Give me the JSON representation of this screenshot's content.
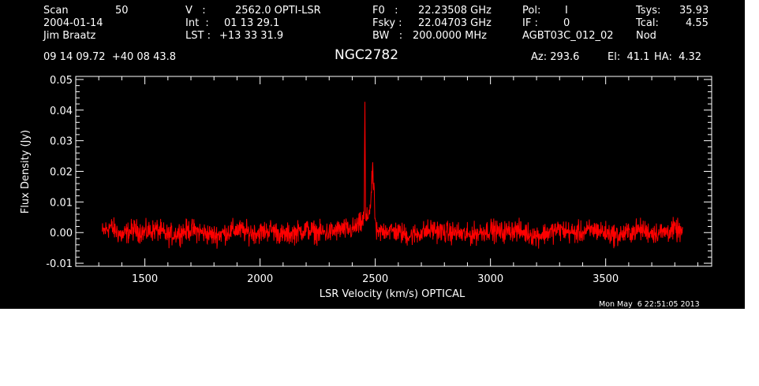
{
  "header": {
    "scan_label": "Scan",
    "scan_value": "50",
    "date": "2004-01-14",
    "observer": "Jim Braatz",
    "coords": "09 14 09.72  +40 08 43.8",
    "v_label": "V   :",
    "v_value": "2562.0 OPTI-LSR",
    "int_label": "Int  :",
    "int_value": "01 13 29.1",
    "lst_label": "LST :",
    "lst_value": "+13 33 31.9",
    "f0_label": "F0   :",
    "f0_value": "22.23508 GHz",
    "fsky_label": "Fsky :",
    "fsky_value": "22.04703 GHz",
    "bw_label": "BW   :",
    "bw_value": "200.0000 MHz",
    "pol_label": "Pol:",
    "pol_value": "I",
    "if_label": "IF :",
    "if_value": "0",
    "project": "AGBT03C_012_02",
    "tsys_label": "Tsys:",
    "tsys_value": "35.93",
    "tcal_label": "Tcal:",
    "tcal_value": "4.55",
    "procedure": "Nod",
    "source": "NGC2782",
    "az": "Az: 293.6",
    "el": "El:  41.1",
    "ha": "HA:  4.32",
    "timestamp": "Mon May  6 22:51:05 2013"
  },
  "colors": {
    "background": "#000000",
    "axes": "#ffffff",
    "series": "#ff0000"
  },
  "chart_data": {
    "type": "line",
    "xlabel": "LSR Velocity (km/s) OPTICAL",
    "ylabel": "Flux Density (Jy)",
    "xlim": [
      1200,
      3960
    ],
    "ylim": [
      -0.011,
      0.051
    ],
    "xticks": [
      1500,
      2000,
      2500,
      3000,
      3500
    ],
    "xtick_labels": [
      "1500",
      "2000",
      "2500",
      "3000",
      "3500"
    ],
    "yticks": [
      -0.01,
      0.0,
      0.01,
      0.02,
      0.03,
      0.04,
      0.05
    ],
    "ytick_labels": [
      "-0.01",
      "0.00",
      "0.01",
      "0.02",
      "0.03",
      "0.04",
      "0.05"
    ],
    "grid": false,
    "series": [
      {
        "x": [
          1315,
          1350,
          1400,
          1450,
          1500,
          1550,
          1600,
          1650,
          1700,
          1750,
          1800,
          1850,
          1900,
          1950,
          2000,
          2050,
          2100,
          2150,
          2200,
          2250,
          2300,
          2350,
          2400,
          2420,
          2440,
          2448,
          2452,
          2455,
          2458,
          2462,
          2466,
          2470,
          2475,
          2480,
          2484,
          2488,
          2492,
          2496,
          2500,
          2505,
          2510,
          2520,
          2550,
          2600,
          2650,
          2700,
          2750,
          2800,
          2850,
          2900,
          2950,
          3000,
          3050,
          3100,
          3150,
          3200,
          3250,
          3300,
          3350,
          3400,
          3450,
          3500,
          3550,
          3600,
          3650,
          3700,
          3750,
          3800,
          3835
        ],
        "y": [
          0.0,
          0.002,
          -0.001,
          0.001,
          0.0,
          0.001,
          -0.001,
          0.0,
          0.001,
          0.0,
          -0.001,
          0.0,
          0.001,
          0.0,
          0.0,
          0.001,
          -0.001,
          0.0,
          0.001,
          0.0,
          0.0,
          0.001,
          0.001,
          0.002,
          0.003,
          0.004,
          0.006,
          0.042,
          0.004,
          0.004,
          0.005,
          0.006,
          0.008,
          0.009,
          0.014,
          0.021,
          0.016,
          0.01,
          0.004,
          0.0,
          -0.001,
          0.0,
          0.001,
          0.0,
          -0.001,
          0.0,
          0.001,
          0.0,
          0.0,
          -0.001,
          0.0,
          0.001,
          0.0,
          0.001,
          0.0,
          -0.001,
          0.0,
          0.001,
          0.0,
          0.0,
          0.001,
          0.0,
          -0.001,
          0.0,
          0.001,
          0.0,
          0.0,
          0.001,
          0.0
        ]
      }
    ]
  }
}
